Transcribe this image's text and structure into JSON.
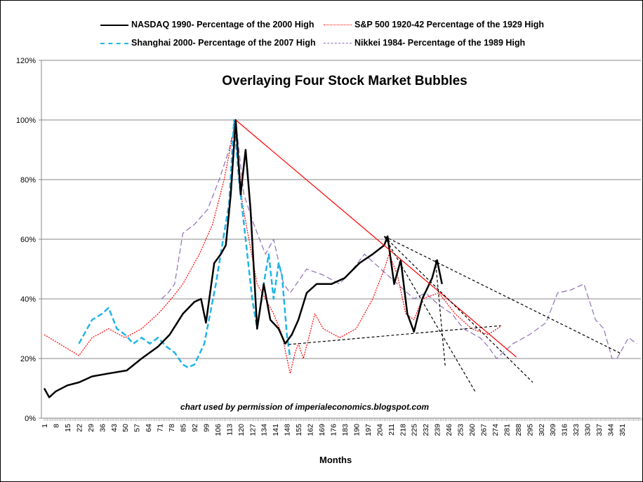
{
  "chart_data": {
    "type": "line",
    "title": "Overlaying Four Stock Market Bubbles",
    "xlabel": "Months",
    "ylabel": "",
    "xlim": [
      0.5,
      363
    ],
    "ylim": [
      0,
      120
    ],
    "y_ticks": [
      0,
      20,
      40,
      60,
      80,
      100,
      120
    ],
    "y_tick_labels": [
      "0%",
      "20%",
      "40%",
      "60%",
      "80%",
      "100%",
      "120%"
    ],
    "x_tick_labels": [
      "1",
      "8",
      "15",
      "22",
      "29",
      "36",
      "43",
      "50",
      "57",
      "64",
      "71",
      "78",
      "85",
      "92",
      "99",
      "106",
      "113",
      "120",
      "127",
      "134",
      "141",
      "148",
      "155",
      "162",
      "169",
      "176",
      "183",
      "190",
      "197",
      "204",
      "211",
      "218",
      "225",
      "232",
      "239",
      "246",
      "253",
      "260",
      "267",
      "274",
      "281",
      "288",
      "295",
      "302",
      "309",
      "316",
      "323",
      "330",
      "337",
      "344",
      "351"
    ],
    "grid": "horizontal",
    "legend_position": "top",
    "annotation": "chart used by permission of imperialeconomics.blogspot.com",
    "series": [
      {
        "name": "NASDAQ 1990-  Percentage of the 2000  High",
        "color": "#000000",
        "style": "solid",
        "x": [
          1,
          4,
          8,
          15,
          22,
          30,
          40,
          51,
          60,
          70,
          77,
          85,
          92,
          96,
          99,
          104,
          108,
          111,
          114,
          117,
          120,
          123,
          126,
          130,
          134,
          138,
          143,
          147,
          151,
          155,
          160,
          166,
          175,
          183,
          192,
          200,
          207,
          209,
          213,
          217,
          221,
          225,
          230,
          236,
          239,
          242
        ],
        "y": [
          10,
          7,
          9,
          11,
          12,
          14,
          15,
          16,
          20,
          24,
          28,
          35,
          39,
          40,
          32,
          52,
          55,
          58,
          75,
          100,
          75,
          90,
          70,
          30,
          45,
          33,
          30,
          25,
          28,
          33,
          42,
          45,
          45,
          47,
          52,
          55,
          58,
          61,
          45,
          53,
          35,
          29,
          40,
          47,
          53,
          45
        ]
      },
      {
        "name": "S&P 500 1920-42 Percentage of the 1929  High",
        "color": "#ff0000",
        "style": "dotted",
        "x": [
          1,
          10,
          22,
          30,
          40,
          50,
          60,
          70,
          78,
          85,
          95,
          103,
          110,
          117,
          121,
          125,
          130,
          135,
          140,
          145,
          150,
          153,
          155,
          158,
          165,
          170,
          180,
          190,
          200,
          207,
          210,
          215,
          220,
          225,
          230,
          240,
          250,
          260,
          270,
          278
        ],
        "y": [
          28,
          25,
          21,
          27,
          30,
          27,
          30,
          35,
          40,
          45,
          55,
          65,
          80,
          100,
          72,
          60,
          45,
          40,
          35,
          28,
          15,
          22,
          25,
          20,
          35,
          30,
          27,
          30,
          40,
          50,
          55,
          48,
          35,
          33,
          40,
          42,
          35,
          30,
          28,
          31
        ]
      },
      {
        "name": "Shanghai 2000-   Percentage of the 2007  High",
        "color": "#1fb5e8",
        "style": "dashed",
        "x": [
          22,
          30,
          36,
          40,
          45,
          50,
          55,
          60,
          65,
          70,
          75,
          80,
          85,
          88,
          92,
          98,
          105,
          110,
          113,
          116,
          119,
          123,
          127,
          130,
          134,
          137,
          140,
          143,
          145,
          148,
          150
        ],
        "y": [
          25,
          33,
          35,
          37,
          30,
          28,
          25,
          27,
          25,
          27,
          24,
          22,
          18,
          17,
          18,
          25,
          45,
          62,
          72,
          100,
          80,
          60,
          40,
          30,
          45,
          55,
          40,
          52,
          48,
          28,
          20
        ]
      },
      {
        "name": "Nikkei 1984- Percentage of the 1989  High",
        "color": "#8e6fb8",
        "style": "dashed",
        "x": [
          72,
          76,
          80,
          85,
          92,
          100,
          107,
          113,
          117,
          122,
          128,
          135,
          140,
          146,
          150,
          160,
          170,
          180,
          188,
          195,
          205,
          215,
          225,
          232,
          240,
          248,
          255,
          265,
          270,
          275,
          285,
          295,
          305,
          312,
          320,
          328,
          335,
          340,
          345,
          348,
          352,
          355,
          360
        ],
        "y": [
          40,
          42,
          45,
          62,
          65,
          70,
          80,
          90,
          100,
          75,
          65,
          55,
          60,
          45,
          42,
          50,
          48,
          45,
          50,
          55,
          50,
          45,
          40,
          42,
          38,
          35,
          30,
          27,
          24,
          20,
          25,
          28,
          32,
          42,
          43,
          45,
          33,
          30,
          20,
          20,
          24,
          27,
          25
        ]
      }
    ],
    "trendlines": [
      {
        "color": "#ff0000",
        "style": "solid",
        "from": [
          117,
          100
        ],
        "to": [
          287,
          20.5
        ]
      },
      {
        "color": "#000000",
        "style": "dashed",
        "from": [
          207,
          61
        ],
        "to": [
          351,
          21.5
        ]
      },
      {
        "color": "#000000",
        "style": "dashed",
        "from": [
          207,
          61
        ],
        "to": [
          297,
          12
        ]
      },
      {
        "color": "#000000",
        "style": "dashed",
        "from": [
          207,
          61
        ],
        "to": [
          262,
          9
        ]
      },
      {
        "color": "#000000",
        "style": "dashed",
        "from": [
          238,
          53
        ],
        "to": [
          244,
          17
        ]
      },
      {
        "color": "#000000",
        "style": "dashed",
        "from": [
          149,
          24.7
        ],
        "to": [
          277.5,
          31
        ]
      }
    ]
  }
}
